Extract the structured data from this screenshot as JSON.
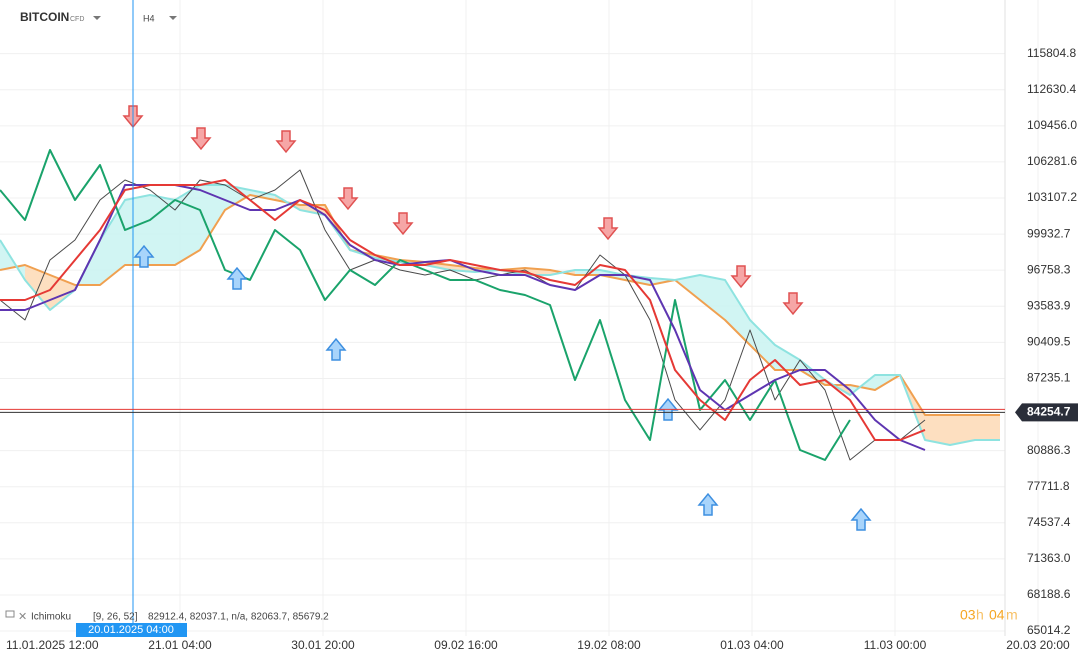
{
  "chart_data": {
    "type": "line",
    "symbol": "BITCOIN",
    "market": "CFD",
    "timeframe": "H4",
    "indicator": {
      "name": "Ichimoku",
      "params": "[9, 26, 52]",
      "readout": "82912.4,  82037.1,  n/a,  82063.7,  85679.2"
    },
    "crosshair_label": "20.01.2025 04:00",
    "last_price": 84254.7,
    "countdown": [
      "03",
      "h",
      "04",
      "m"
    ],
    "x_axis_labels": [
      "11.01.2025  12:00",
      "21.01  04:00",
      "30.01  20:00",
      "09.02  16:00",
      "19.02  08:00",
      "01.03  04:00",
      "11.03  00:00",
      "20.03  20:00"
    ],
    "ylim": [
      64577,
      120527
    ],
    "yticks": [
      115804.8,
      112630.4,
      {
        "value": 109456,
        "label": "109456.0"
      },
      106281.6,
      103107.2,
      99932.7,
      96758.3,
      93583.9,
      90409.5,
      87235.1,
      80886.3,
      77711.8,
      74537.4,
      {
        "value": 71363,
        "label": "71363.0"
      },
      68188.6,
      65014.2
    ],
    "grid": true,
    "series": [
      {
        "color": "#4a4a4a",
        "values": [
          94136,
          92377,
          97655,
          99414,
          102933,
          104692,
          103813,
          102053,
          104692,
          104253,
          102933,
          103813,
          105572,
          100294,
          96775,
          97655,
          96775,
          96335,
          96775,
          95896,
          96335,
          96775,
          95456,
          95016,
          98095,
          96335,
          92377,
          85339,
          82700,
          85339,
          91497,
          85339,
          88858,
          86218,
          80061,
          81820,
          81820,
          83579,
          null,
          null,
          null
        ]
      },
      {
        "color": "#e53935",
        "values": [
          94136,
          94136,
          95016,
          97655,
          100294,
          103813,
          104253,
          104253,
          104253,
          104692,
          102933,
          101174,
          102933,
          102053,
          99414,
          98095,
          97215,
          97215,
          97655,
          97215,
          96775,
          96599,
          95896,
          95456,
          97215,
          96775,
          94136,
          87978,
          85339,
          83579,
          87098,
          88858,
          86658,
          87098,
          85339,
          81820,
          81820,
          82700,
          null,
          null,
          null
        ]
      },
      {
        "color": "#5e35b1",
        "values": [
          93256,
          93256,
          94136,
          95016,
          99414,
          104253,
          104253,
          104253,
          103813,
          102933,
          102053,
          102053,
          102933,
          101613,
          98974,
          97655,
          97215,
          97479,
          97655,
          96775,
          96335,
          96335,
          95456,
          95016,
          96335,
          96335,
          95896,
          91497,
          86218,
          84459,
          85779,
          87098,
          87978,
          87978,
          86218,
          83579,
          81820,
          80940,
          null,
          null,
          null
        ]
      },
      {
        "color": "#1aa36b",
        "values": [
          103813,
          101174,
          107332,
          102933,
          106012,
          100294,
          101174,
          102933,
          102053,
          96775,
          95896,
          100294,
          98535,
          94136,
          96775,
          95456,
          97655,
          96775,
          95896,
          95896,
          95016,
          94576,
          93696,
          87098,
          92377,
          85339,
          81820,
          94136,
          84459,
          87098,
          83579,
          87098,
          80940,
          80061,
          83579,
          null,
          null,
          null,
          null,
          null,
          null
        ]
      },
      {
        "color": "#f0a050",
        "values": [
          96775,
          97215,
          96335,
          95456,
          95456,
          97215,
          97215,
          97215,
          98535,
          102053,
          103373,
          102933,
          102493,
          102493,
          98535,
          98095,
          97655,
          97479,
          97215,
          96951,
          96775,
          96951,
          96775,
          96335,
          96335,
          95896,
          95456,
          95896,
          94136,
          92377,
          90177,
          87978,
          87978,
          86658,
          86658,
          86218,
          87538,
          84019,
          84019,
          84019,
          84019
        ]
      },
      {
        "color": "#8ee3e0",
        "values": [
          99414,
          95896,
          93256,
          95016,
          99414,
          102933,
          103373,
          102933,
          104253,
          104253,
          103813,
          103373,
          102053,
          101613,
          98535,
          97831,
          97479,
          97215,
          96775,
          96599,
          96775,
          96335,
          96335,
          96775,
          96775,
          96335,
          96071,
          95896,
          96335,
          95896,
          92377,
          90177,
          88858,
          87098,
          85779,
          87538,
          87538,
          81820,
          81380,
          81820,
          81820
        ]
      }
    ]
  }
}
